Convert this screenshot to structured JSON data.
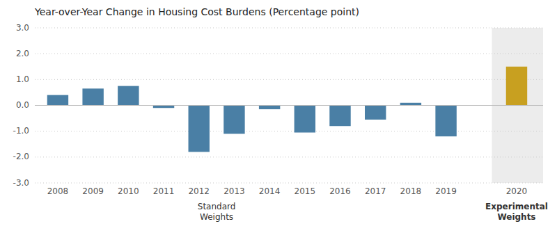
{
  "chart_data": {
    "type": "bar",
    "title": "Year-over-Year Change in Housing Cost Burdens (Percentage point)",
    "categories": [
      "2008",
      "2009",
      "2010",
      "2011",
      "2012",
      "2013",
      "2014",
      "2015",
      "2016",
      "2017",
      "2018",
      "2019",
      "2020"
    ],
    "values": [
      0.4,
      0.65,
      0.75,
      -0.1,
      -1.8,
      -1.1,
      -0.15,
      -1.05,
      -0.8,
      -0.55,
      0.1,
      -1.2,
      1.5
    ],
    "colors": [
      "#4a7fa5",
      "#4a7fa5",
      "#4a7fa5",
      "#4a7fa5",
      "#4a7fa5",
      "#4a7fa5",
      "#4a7fa5",
      "#4a7fa5",
      "#4a7fa5",
      "#4a7fa5",
      "#4a7fa5",
      "#4a7fa5",
      "#c8a020"
    ],
    "ylim": [
      -3.0,
      3.0
    ],
    "yticks": [
      {
        "value": -3.0,
        "label": "-3.0"
      },
      {
        "value": -2.0,
        "label": "-2.0"
      },
      {
        "value": -1.0,
        "label": "-1.0"
      },
      {
        "value": 0.0,
        "label": "0.0"
      },
      {
        "value": 1.0,
        "label": "1.0"
      },
      {
        "value": 2.0,
        "label": "2.0"
      },
      {
        "value": 3.0,
        "label": "3.0"
      }
    ],
    "grid": true,
    "annotations": [
      "Standard\nWeights",
      "Experimental\nWeights"
    ]
  }
}
